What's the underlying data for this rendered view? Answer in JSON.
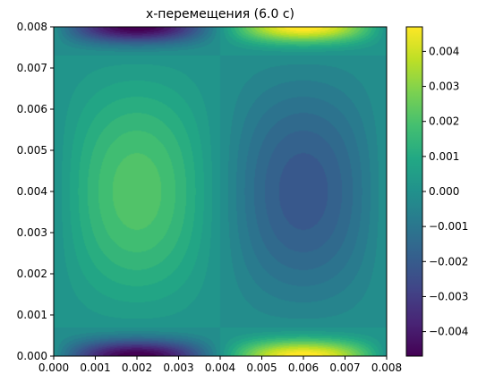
{
  "chart_data": {
    "type": "heatmap",
    "title": "x-перемещения (6.0 c)",
    "xlabel": "",
    "ylabel": "",
    "xlim": [
      0.0,
      0.008
    ],
    "ylim": [
      0.0,
      0.008
    ],
    "x_ticks": [
      "0.000",
      "0.001",
      "0.002",
      "0.003",
      "0.004",
      "0.005",
      "0.006",
      "0.007",
      "0.008"
    ],
    "y_ticks": [
      "0.000",
      "0.001",
      "0.002",
      "0.003",
      "0.004",
      "0.005",
      "0.006",
      "0.007",
      "0.008"
    ],
    "colormap": "viridis",
    "colorbar": {
      "range": [
        -0.0047,
        0.0047
      ],
      "ticks": [
        "0.004",
        "0.003",
        "0.002",
        "0.001",
        "0.000",
        "−0.001",
        "−0.002",
        "−0.003",
        "−0.004"
      ],
      "tick_values": [
        0.004,
        0.003,
        0.002,
        0.001,
        0.0,
        -0.001,
        -0.002,
        -0.003,
        -0.004
      ]
    },
    "features": [
      {
        "x": 0.00165,
        "y": 0.004,
        "value": 0.0021
      },
      {
        "x": 0.0063,
        "y": 0.004,
        "value": -0.0021
      },
      {
        "x": 0.0013,
        "y": 0.008,
        "value": -0.0047
      },
      {
        "x": 0.0013,
        "y": 0.0,
        "value": -0.0047
      },
      {
        "x": 0.0067,
        "y": 0.008,
        "value": 0.0047
      },
      {
        "x": 0.0067,
        "y": 0.0,
        "value": 0.0047
      }
    ]
  }
}
